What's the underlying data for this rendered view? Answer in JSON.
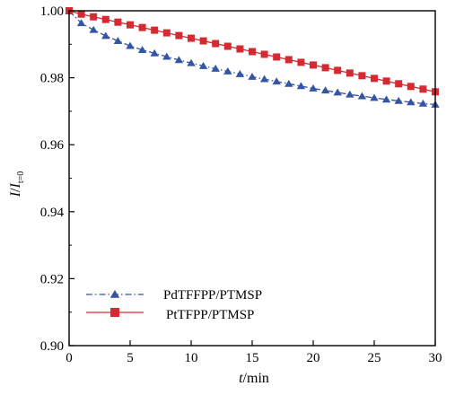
{
  "chart_data": {
    "type": "line",
    "xlabel_italic": "t",
    "xlabel_unit": "/min",
    "ylabel_main": "I",
    "ylabel_frac": "/",
    "ylabel_den": "I",
    "ylabel_sub": "t=0",
    "xlim": [
      0,
      30
    ],
    "ylim": [
      0.9,
      1.0
    ],
    "xticks": [
      0,
      5,
      10,
      15,
      20,
      25,
      30
    ],
    "xtick_labels": [
      "0",
      "5",
      "10",
      "15",
      "20",
      "25",
      "30"
    ],
    "yticks": [
      0.9,
      0.92,
      0.94,
      0.96,
      0.98,
      1.0
    ],
    "ytick_labels": [
      "0.90",
      "0.92",
      "0.94",
      "0.96",
      "0.98",
      "1.00"
    ],
    "legend_position": "bottom-left",
    "series": [
      {
        "name": "PdTFFPP/PTMSP",
        "marker": "triangle",
        "line_style": "dashdot",
        "color": "#3355a4",
        "x": [
          0,
          1,
          2,
          3,
          4,
          5,
          6,
          7,
          8,
          9,
          10,
          11,
          12,
          13,
          14,
          15,
          16,
          17,
          18,
          19,
          20,
          21,
          22,
          23,
          24,
          25,
          26,
          27,
          28,
          29,
          30
        ],
        "y": [
          1.0,
          0.9963,
          0.9943,
          0.9925,
          0.991,
          0.9895,
          0.9883,
          0.9873,
          0.9863,
          0.9853,
          0.9844,
          0.9835,
          0.9827,
          0.9819,
          0.9811,
          0.9803,
          0.9796,
          0.9789,
          0.9782,
          0.9775,
          0.9768,
          0.9762,
          0.9756,
          0.975,
          0.9745,
          0.974,
          0.9735,
          0.9731,
          0.9727,
          0.9723,
          0.972
        ]
      },
      {
        "name": "PtTFPP/PTMSP",
        "marker": "square",
        "line_style": "solid",
        "color": "#d42a32",
        "x": [
          0,
          1,
          2,
          3,
          4,
          5,
          6,
          7,
          8,
          9,
          10,
          11,
          12,
          13,
          14,
          15,
          16,
          17,
          18,
          19,
          20,
          21,
          22,
          23,
          24,
          25,
          26,
          27,
          28,
          29,
          30
        ],
        "y": [
          1.0,
          0.999,
          0.9982,
          0.9974,
          0.9966,
          0.9958,
          0.995,
          0.9942,
          0.9934,
          0.9926,
          0.9918,
          0.991,
          0.9902,
          0.9894,
          0.9886,
          0.9878,
          0.987,
          0.9862,
          0.9854,
          0.9846,
          0.9838,
          0.983,
          0.9822,
          0.9814,
          0.9806,
          0.9798,
          0.979,
          0.9782,
          0.9774,
          0.9766,
          0.9758
        ]
      }
    ]
  }
}
